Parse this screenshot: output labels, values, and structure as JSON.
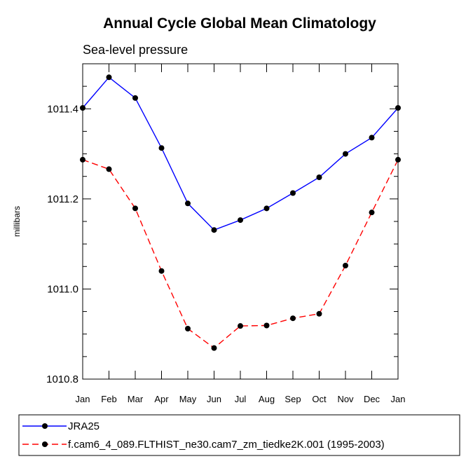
{
  "chart_data": {
    "type": "line",
    "title": "Annual Cycle Global Mean Climatology",
    "subtitle": "Sea-level pressure",
    "xlabel": "",
    "ylabel": "millibars",
    "categories": [
      "Jan",
      "Feb",
      "Mar",
      "Apr",
      "May",
      "Jun",
      "Jul",
      "Aug",
      "Sep",
      "Oct",
      "Nov",
      "Dec",
      "Jan"
    ],
    "ylim": [
      1010.8,
      1011.5
    ],
    "yticks": [
      1010.8,
      1011.0,
      1011.2,
      1011.4
    ],
    "ytick_labels": [
      "1010.8",
      "1011.0",
      "1011.2",
      "1011.4"
    ],
    "series": [
      {
        "name": "JRA25",
        "color": "#0000ff",
        "dash": "solid",
        "marker": "circle",
        "values": [
          1011.402,
          1011.47,
          1011.424,
          1011.313,
          1011.19,
          1011.131,
          1011.153,
          1011.179,
          1011.213,
          1011.248,
          1011.3,
          1011.336,
          1011.402
        ]
      },
      {
        "name": "f.cam6_4_089.FLTHIST_ne30.cam7_zm_tiedke2K.001 (1995-2003)",
        "color": "#ff0000",
        "dash": "dashed",
        "marker": "circle",
        "values": [
          1011.287,
          1011.266,
          1011.179,
          1011.04,
          1010.912,
          1010.869,
          1010.918,
          1010.919,
          1010.935,
          1010.945,
          1011.052,
          1011.17,
          1011.287
        ]
      }
    ],
    "legend_position": "bottom"
  }
}
